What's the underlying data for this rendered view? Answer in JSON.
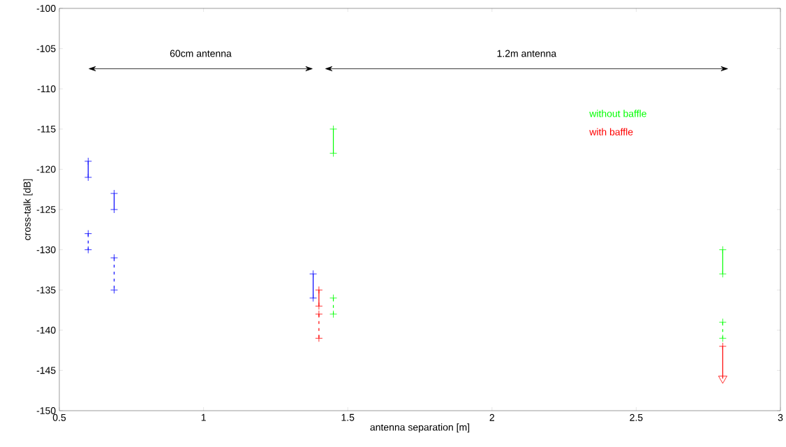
{
  "chart_data": {
    "type": "line",
    "xlabel": "antenna separation [m]",
    "ylabel": "cross-talk [dB]",
    "xlim": [
      0.5,
      3
    ],
    "ylim": [
      -150,
      -100
    ],
    "xticks": [
      0.5,
      1,
      1.5,
      2,
      2.5,
      3
    ],
    "yticks": [
      -150,
      -145,
      -140,
      -135,
      -130,
      -125,
      -120,
      -115,
      -110,
      -105,
      -100
    ],
    "grid": false,
    "legend": "top right",
    "annotations": [
      "60cm antenna",
      "1.2m antenna"
    ],
    "series": [
      {
        "color": "#0000ff",
        "marker": "cross",
        "line_style": "solid",
        "x": [
          0.6,
          0.6
        ],
        "values": [
          -119,
          -121
        ]
      },
      {
        "color": "#0000ff",
        "marker": "cross",
        "line_style": "solid",
        "x": [
          0.69,
          0.69
        ],
        "values": [
          -123,
          -125
        ]
      },
      {
        "color": "#0000ff",
        "marker": "cross",
        "line_style": "solid",
        "x": [
          1.38,
          1.38
        ],
        "values": [
          -133,
          -136
        ]
      },
      {
        "color": "#0000ff",
        "marker": "cross",
        "line_style": "dashed",
        "x": [
          0.6,
          0.6
        ],
        "values": [
          -128,
          -130
        ]
      },
      {
        "color": "#0000ff",
        "marker": "cross",
        "line_style": "dashed",
        "x": [
          0.69,
          0.69
        ],
        "values": [
          -131,
          -135
        ]
      },
      {
        "name": "without baffle",
        "color": "#00ff00",
        "marker": "cross",
        "line_style": "solid",
        "x": [
          1.45,
          1.45
        ],
        "values": [
          -115,
          -118
        ]
      },
      {
        "color": "#00ff00",
        "marker": "cross",
        "line_style": "solid",
        "x": [
          2.8,
          2.8
        ],
        "values": [
          -130,
          -133
        ]
      },
      {
        "color": "#00ff00",
        "marker": "cross",
        "line_style": "dashed",
        "x": [
          1.45,
          1.45
        ],
        "values": [
          -136,
          -138
        ]
      },
      {
        "color": "#00ff00",
        "marker": "cross",
        "line_style": "dashed",
        "x": [
          2.8,
          2.8
        ],
        "values": [
          -139,
          -141
        ]
      },
      {
        "name": "with baffle",
        "color": "#ff0000",
        "marker": "cross",
        "line_style": "solid",
        "x": [
          1.4,
          1.4
        ],
        "values": [
          -135,
          -137
        ]
      },
      {
        "color": "#ff0000",
        "marker": "cross",
        "line_style": "dashed",
        "x": [
          1.4,
          1.4
        ],
        "values": [
          -138,
          -141
        ]
      },
      {
        "color": "#ff0000",
        "marker": "none",
        "line_style": "solid",
        "x": [
          2.8,
          2.8
        ],
        "values": [
          -142,
          -146
        ]
      },
      {
        "type": "scatter",
        "color": "#ff0000",
        "marker": "cross",
        "x": [
          2.8
        ],
        "values": [
          -142
        ]
      },
      {
        "type": "scatter",
        "color": "#ff0000",
        "marker": "triangle",
        "x": [
          2.8
        ],
        "values": [
          -146
        ]
      }
    ]
  }
}
